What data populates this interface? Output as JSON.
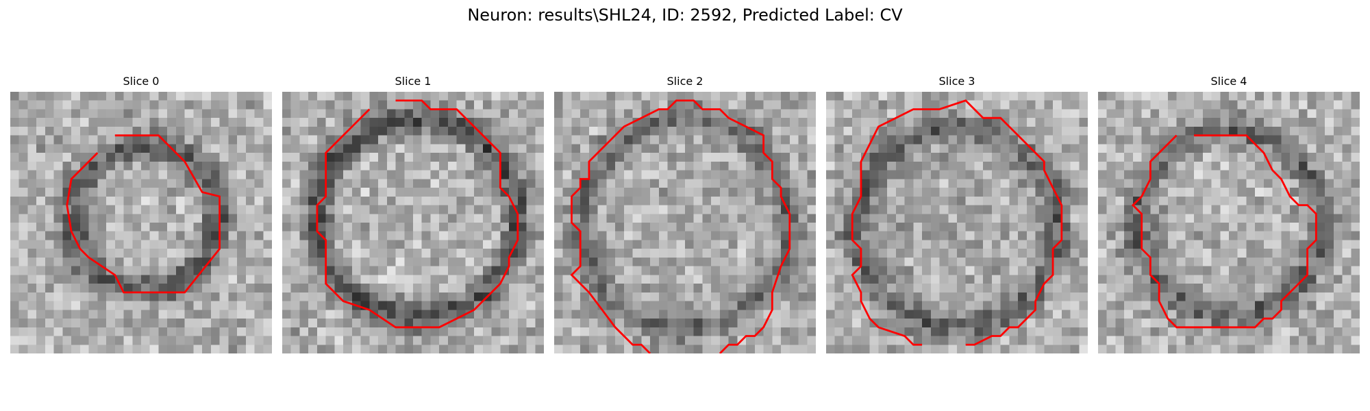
{
  "title": "Neuron: results\\SHL24, ID: 2592, Predicted Label: CV",
  "contour_color": "#ff0000",
  "panels": [
    {
      "label": "Slice 0"
    },
    {
      "label": "Slice 1"
    },
    {
      "label": "Slice 2"
    },
    {
      "label": "Slice 3"
    },
    {
      "label": "Slice 4"
    }
  ]
}
